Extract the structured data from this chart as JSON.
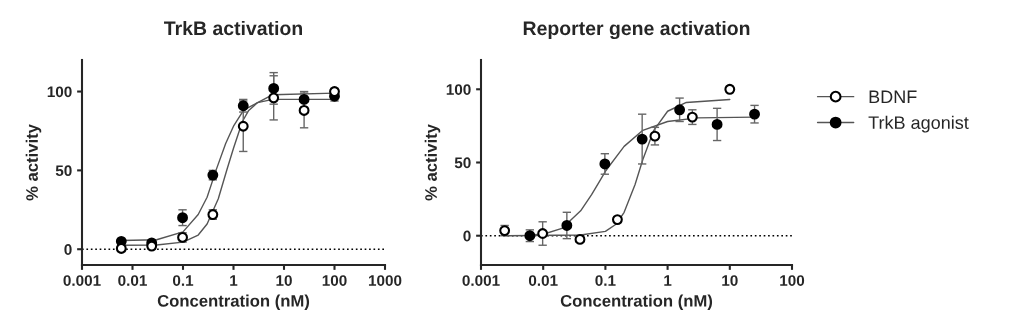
{
  "chart_data": [
    {
      "type": "scatter",
      "title": "TrkB activation",
      "xlabel": "Concentration (nM)",
      "ylabel": "% activity",
      "log": "x",
      "xlim": [
        0.001,
        1000
      ],
      "xticks": [
        0.001,
        0.01,
        0.1,
        1,
        10,
        100,
        1000
      ],
      "ylim": [
        -10,
        120
      ],
      "yticks": [
        0,
        50,
        100
      ],
      "grid": false,
      "legend": false,
      "ref_lines": [
        {
          "axis": "y",
          "value": 0,
          "color": "#000000",
          "line_style": "dotted"
        }
      ],
      "series": [
        {
          "marker": "circle",
          "color": "#ffffff",
          "x": [
            0.006,
            0.024,
            0.098,
            0.39,
            1.56,
            6.25,
            25,
            100
          ],
          "values": [
            0.5,
            2,
            7.5,
            22,
            78,
            96,
            88,
            100
          ],
          "errors": [
            2,
            2,
            3,
            3,
            16,
            14,
            11,
            2
          ]
        },
        {
          "marker": "circle",
          "color": "#000000",
          "x": [
            0.006,
            0.024,
            0.098,
            0.39,
            1.56,
            6.25,
            25,
            100
          ],
          "values": [
            5,
            4,
            20,
            47,
            91,
            102,
            95,
            97
          ],
          "errors": [
            1,
            1,
            5,
            3,
            4,
            10,
            5,
            3
          ]
        },
        {
          "type": "line",
          "marker": "none",
          "color": "#555555",
          "x": [
            0.006,
            0.03,
            0.1,
            0.2,
            0.3,
            0.5,
            0.75,
            1,
            1.5,
            2,
            3,
            6,
            100
          ],
          "values": [
            2.5,
            2.7,
            4.5,
            9,
            16,
            32,
            51,
            64,
            81,
            88,
            93,
            98,
            99
          ]
        },
        {
          "type": "line",
          "marker": "none",
          "color": "#555555",
          "x": [
            0.006,
            0.03,
            0.1,
            0.2,
            0.3,
            0.45,
            0.7,
            1,
            1.5,
            2,
            3,
            6,
            100
          ],
          "values": [
            5.5,
            6,
            11,
            22,
            33,
            50,
            67,
            78,
            87,
            90,
            93,
            95,
            95
          ]
        }
      ]
    },
    {
      "type": "scatter",
      "title": "Reporter gene activation",
      "xlabel": "Concentration (nM)",
      "ylabel": "% activity",
      "log": "x",
      "xlim": [
        0.001,
        100
      ],
      "xticks": [
        0.001,
        0.01,
        0.1,
        1,
        10,
        100
      ],
      "ylim": [
        -20,
        120
      ],
      "yticks": [
        0,
        50,
        100
      ],
      "grid": false,
      "legend": "right",
      "ref_lines": [
        {
          "axis": "y",
          "value": 0,
          "color": "#000000",
          "line_style": "dotted"
        }
      ],
      "series": [
        {
          "marker": "circle",
          "name": "BDNF",
          "color": "#ffffff",
          "x": [
            0.0024,
            0.0098,
            0.039,
            0.156,
            0.625,
            2.5,
            10
          ],
          "values": [
            3.5,
            1.5,
            -2.5,
            11,
            68,
            81,
            100
          ],
          "errors": [
            3.5,
            8,
            2,
            2,
            6,
            5,
            2
          ]
        },
        {
          "marker": "circle",
          "name": "TrkB agonist",
          "color": "#000000",
          "x": [
            0.0061,
            0.024,
            0.098,
            0.39,
            1.56,
            6.25,
            25
          ],
          "values": [
            0,
            7,
            49,
            66,
            86,
            76,
            83
          ],
          "errors": [
            4,
            9,
            7,
            17,
            8,
            11,
            6
          ]
        },
        {
          "type": "line",
          "marker": "none",
          "color": "#555555",
          "x": [
            0.0024,
            0.04,
            0.1,
            0.15,
            0.2,
            0.3,
            0.4,
            0.6,
            1,
            2,
            10
          ],
          "values": [
            0,
            0.5,
            3,
            8,
            16,
            35,
            52,
            72,
            85,
            91,
            93
          ]
        },
        {
          "type": "line",
          "marker": "none",
          "color": "#555555",
          "x": [
            0.006,
            0.01,
            0.02,
            0.04,
            0.06,
            0.08,
            0.1,
            0.2,
            0.4,
            1,
            3,
            25
          ],
          "values": [
            0.5,
            1,
            5,
            17,
            28,
            37,
            44,
            61,
            72,
            78,
            80.5,
            81
          ]
        }
      ]
    }
  ]
}
